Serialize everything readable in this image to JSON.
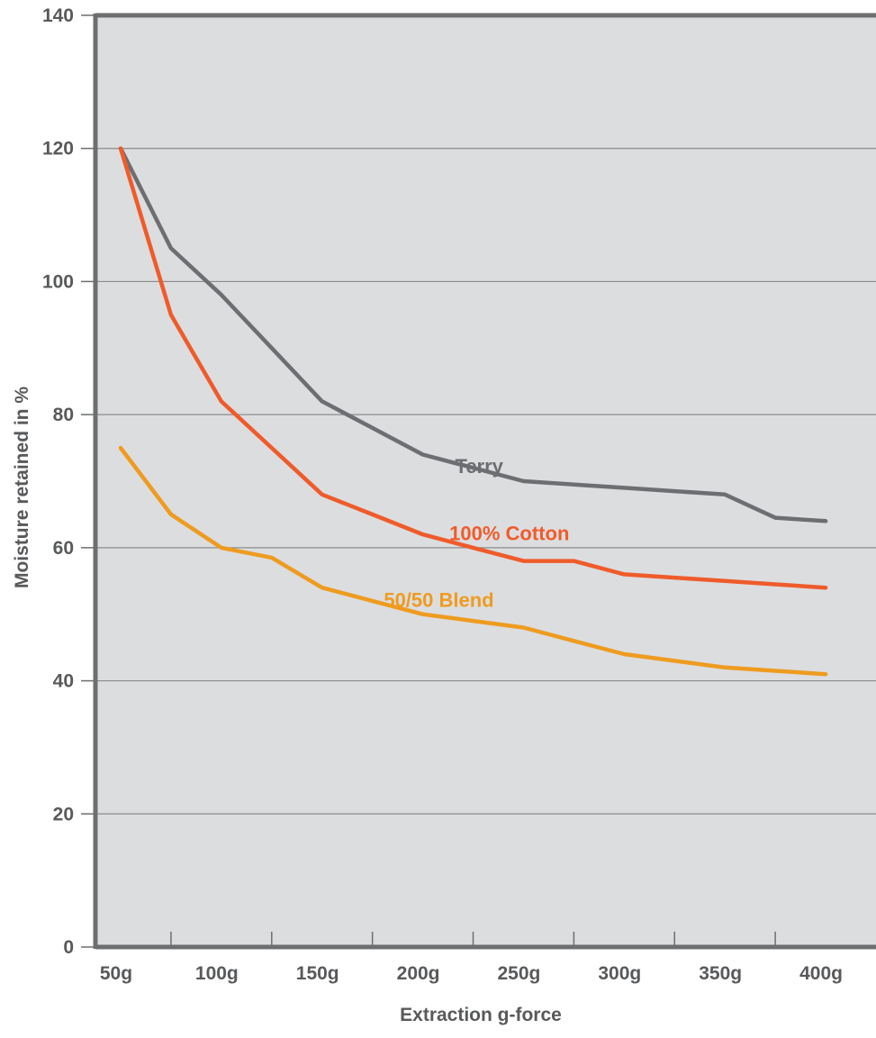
{
  "chart_data": {
    "type": "line",
    "title": "",
    "xlabel": "Extraction g-force",
    "ylabel": "Moisture retained in %",
    "xlim": [
      37.5,
      425
    ],
    "ylim": [
      0,
      140
    ],
    "grid": true,
    "x_ticks": [
      50,
      100,
      150,
      200,
      250,
      300,
      350,
      400
    ],
    "x_tick_labels": [
      "50g",
      "100g",
      "150g",
      "200g",
      "250g",
      "300g",
      "350g",
      "400g"
    ],
    "x_minor_ticks": [
      75,
      125,
      175,
      225,
      275,
      325,
      375,
      425
    ],
    "y_ticks": [
      0,
      20,
      40,
      60,
      80,
      100,
      120,
      140
    ],
    "y_tick_labels": [
      "0",
      "20",
      "40",
      "60",
      "80",
      "100",
      "120",
      "140"
    ],
    "colors": {
      "plot_background": "#dcdddf",
      "axis": "#6d6e70",
      "grid": "#8a8b8d",
      "text": "#58595b"
    },
    "series": [
      {
        "name": "Terry",
        "color": "#6d6e71",
        "label_at": [
          228,
          71.2
        ],
        "x": [
          50,
          75,
          100,
          125,
          150,
          175,
          200,
          225,
          250,
          275,
          300,
          325,
          350,
          375,
          400
        ],
        "values": [
          120,
          105,
          98,
          90,
          82,
          78,
          74,
          72,
          70,
          69.5,
          69,
          68.5,
          68,
          64.5,
          64
        ]
      },
      {
        "name": "100% Cotton",
        "color": "#ef5b2b",
        "label_at": [
          243,
          61.1
        ],
        "x": [
          50,
          75,
          100,
          125,
          150,
          175,
          200,
          225,
          250,
          275,
          300,
          325,
          350,
          375,
          400
        ],
        "values": [
          120,
          95,
          82,
          75,
          68,
          65,
          62,
          60,
          58,
          58,
          56,
          55.5,
          55,
          54.5,
          54
        ]
      },
      {
        "name": "50/50 Blend",
        "color": "#ee9b1f",
        "label_at": [
          208,
          51.1
        ],
        "x": [
          50,
          75,
          100,
          125,
          150,
          175,
          200,
          225,
          250,
          275,
          300,
          325,
          350,
          375,
          400
        ],
        "values": [
          75,
          65,
          60,
          58.5,
          54,
          52,
          50,
          49,
          48,
          46,
          44,
          43,
          42,
          41.5,
          41
        ]
      }
    ]
  }
}
